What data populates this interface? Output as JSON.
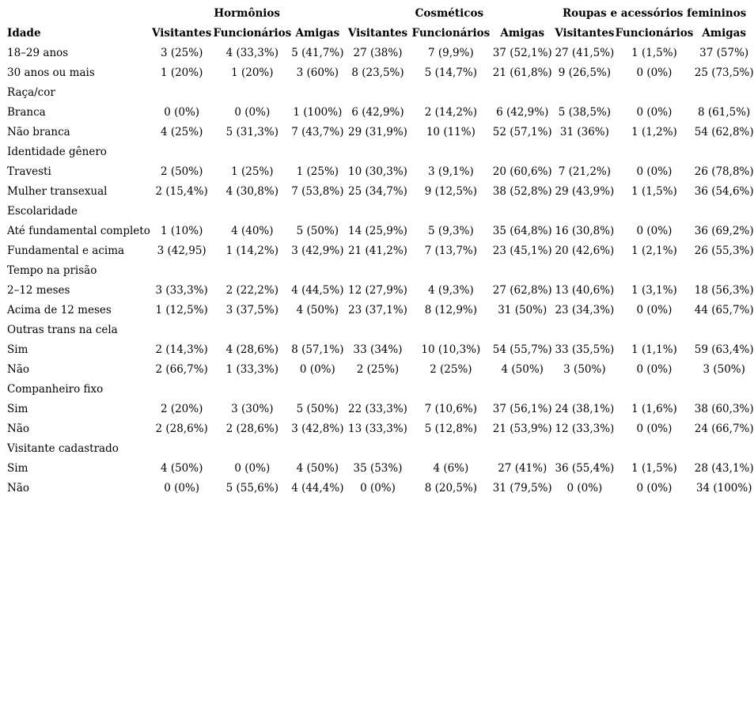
{
  "colors": {
    "text": "#000000",
    "background": "#ffffff"
  },
  "table": {
    "corner_label": "Idade",
    "groups": [
      {
        "label": "Hormônios"
      },
      {
        "label": "Cosméticos"
      },
      {
        "label": "Roupas e acessórios femininos"
      }
    ],
    "subheaders": [
      "Visitantes",
      "Funcionários",
      "Amigas",
      "Visitantes",
      "Funcionários",
      "Amigas",
      "Visitantes",
      "Funcionários",
      "Amigas"
    ],
    "rows": [
      {
        "type": "data",
        "label": "18–29 anos",
        "values": [
          "3 (25%)",
          "4 (33,3%)",
          "5 (41,7%)",
          "27 (38%)",
          "7 (9,9%)",
          "37 (52,1%)",
          "27 (41,5%)",
          "1 (1,5%)",
          "37 (57%)"
        ]
      },
      {
        "type": "data",
        "label": "30 anos ou mais",
        "values": [
          "1 (20%)",
          "1 (20%)",
          "3 (60%)",
          "8 (23,5%)",
          "5 (14,7%)",
          "21 (61,8%)",
          "9 (26,5%)",
          "0 (0%)",
          "25 (73,5%)"
        ]
      },
      {
        "type": "section",
        "label": "Raça/cor",
        "values": []
      },
      {
        "type": "data",
        "label": "Branca",
        "values": [
          "0 (0%)",
          "0 (0%)",
          "1 (100%)",
          "6 (42,9%)",
          "2 (14,2%)",
          "6 (42,9%)",
          "5 (38,5%)",
          "0 (0%)",
          "8 (61,5%)"
        ]
      },
      {
        "type": "data",
        "label": "Não branca",
        "values": [
          "4 (25%)",
          "5 (31,3%)",
          "7 (43,7%)",
          "29 (31,9%)",
          "10 (11%)",
          "52 (57,1%)",
          "31 (36%)",
          "1 (1,2%)",
          "54 (62,8%)"
        ]
      },
      {
        "type": "section",
        "label": "Identidade gênero",
        "values": []
      },
      {
        "type": "data",
        "label": "Travesti",
        "values": [
          "2 (50%)",
          "1 (25%)",
          "1 (25%)",
          "10 (30,3%)",
          "3 (9,1%)",
          "20 (60,6%)",
          "7 (21,2%)",
          "0 (0%)",
          "26 (78,8%)"
        ]
      },
      {
        "type": "data",
        "label": "Mulher transexual",
        "values": [
          "2 (15,4%)",
          "4 (30,8%)",
          "7 (53,8%)",
          "25 (34,7%)",
          "9 (12,5%)",
          "38 (52,8%)",
          "29 (43,9%)",
          "1 (1,5%)",
          "36 (54,6%)"
        ]
      },
      {
        "type": "section",
        "label": "Escolaridade",
        "values": []
      },
      {
        "type": "data",
        "label": "Até fundamental completo",
        "values": [
          "1 (10%)",
          "4 (40%)",
          "5 (50%)",
          "14 (25,9%)",
          "5 (9,3%)",
          "35 (64,8%)",
          "16 (30,8%)",
          "0 (0%)",
          "36 (69,2%)"
        ]
      },
      {
        "type": "data",
        "label": "Fundamental e acima",
        "values": [
          "3 (42,95)",
          "1 (14,2%)",
          "3 (42,9%)",
          "21 (41,2%)",
          "7 (13,7%)",
          "23 (45,1%)",
          "20 (42,6%)",
          "1 (2,1%)",
          "26 (55,3%)"
        ]
      },
      {
        "type": "section",
        "label": "Tempo na prisão",
        "values": []
      },
      {
        "type": "data",
        "label": "2–12 meses",
        "values": [
          "3 (33,3%)",
          "2 (22,2%)",
          "4 (44,5%)",
          "12 (27,9%)",
          "4 (9,3%)",
          "27 (62,8%)",
          "13 (40,6%)",
          "1 (3,1%)",
          "18 (56,3%)"
        ]
      },
      {
        "type": "data",
        "label": "Acima de 12 meses",
        "values": [
          "1 (12,5%)",
          "3 (37,5%)",
          "4 (50%)",
          "23 (37,1%)",
          "8 (12,9%)",
          "31 (50%)",
          "23 (34,3%)",
          "0 (0%)",
          "44 (65,7%)"
        ]
      },
      {
        "type": "section",
        "label": "Outras trans na cela",
        "values": []
      },
      {
        "type": "data",
        "label": "Sim",
        "values": [
          "2 (14,3%)",
          "4 (28,6%)",
          "8 (57,1%)",
          "33 (34%)",
          "10 (10,3%)",
          "54 (55,7%)",
          "33 (35,5%)",
          "1 (1,1%)",
          "59 (63,4%)"
        ]
      },
      {
        "type": "data",
        "label": "Não",
        "values": [
          "2 (66,7%)",
          "1 (33,3%)",
          "0 (0%)",
          "2 (25%)",
          "2 (25%)",
          "4 (50%)",
          "3 (50%)",
          "0 (0%)",
          "3 (50%)"
        ]
      },
      {
        "type": "section",
        "label": "Companheiro fixo",
        "values": []
      },
      {
        "type": "data",
        "label": "Sim",
        "values": [
          "2 (20%)",
          "3 (30%)",
          "5 (50%)",
          "22 (33,3%)",
          "7 (10,6%)",
          "37 (56,1%)",
          "24 (38,1%)",
          "1 (1,6%)",
          "38 (60,3%)"
        ]
      },
      {
        "type": "data",
        "label": "Não",
        "values": [
          "2 (28,6%)",
          "2 (28,6%)",
          "3 (42,8%)",
          "13 (33,3%)",
          "5 (12,8%)",
          "21 (53,9%)",
          "12 (33,3%)",
          "0 (0%)",
          "24 (66,7%)"
        ]
      },
      {
        "type": "section",
        "label": "Visitante cadastrado",
        "values": []
      },
      {
        "type": "data",
        "label": "Sim",
        "values": [
          "4 (50%)",
          "0 (0%)",
          "4 (50%)",
          "35 (53%)",
          "4 (6%)",
          "27 (41%)",
          "36 (55,4%)",
          "1 (1,5%)",
          "28 (43,1%)"
        ]
      },
      {
        "type": "data",
        "label": "Não",
        "values": [
          "0 (0%)",
          "5 (55,6%)",
          "4 (44,4%)",
          "0 (0%)",
          "8 (20,5%)",
          "31 (79,5%)",
          "0 (0%)",
          "0 (0%)",
          "34 (100%)"
        ]
      }
    ]
  }
}
